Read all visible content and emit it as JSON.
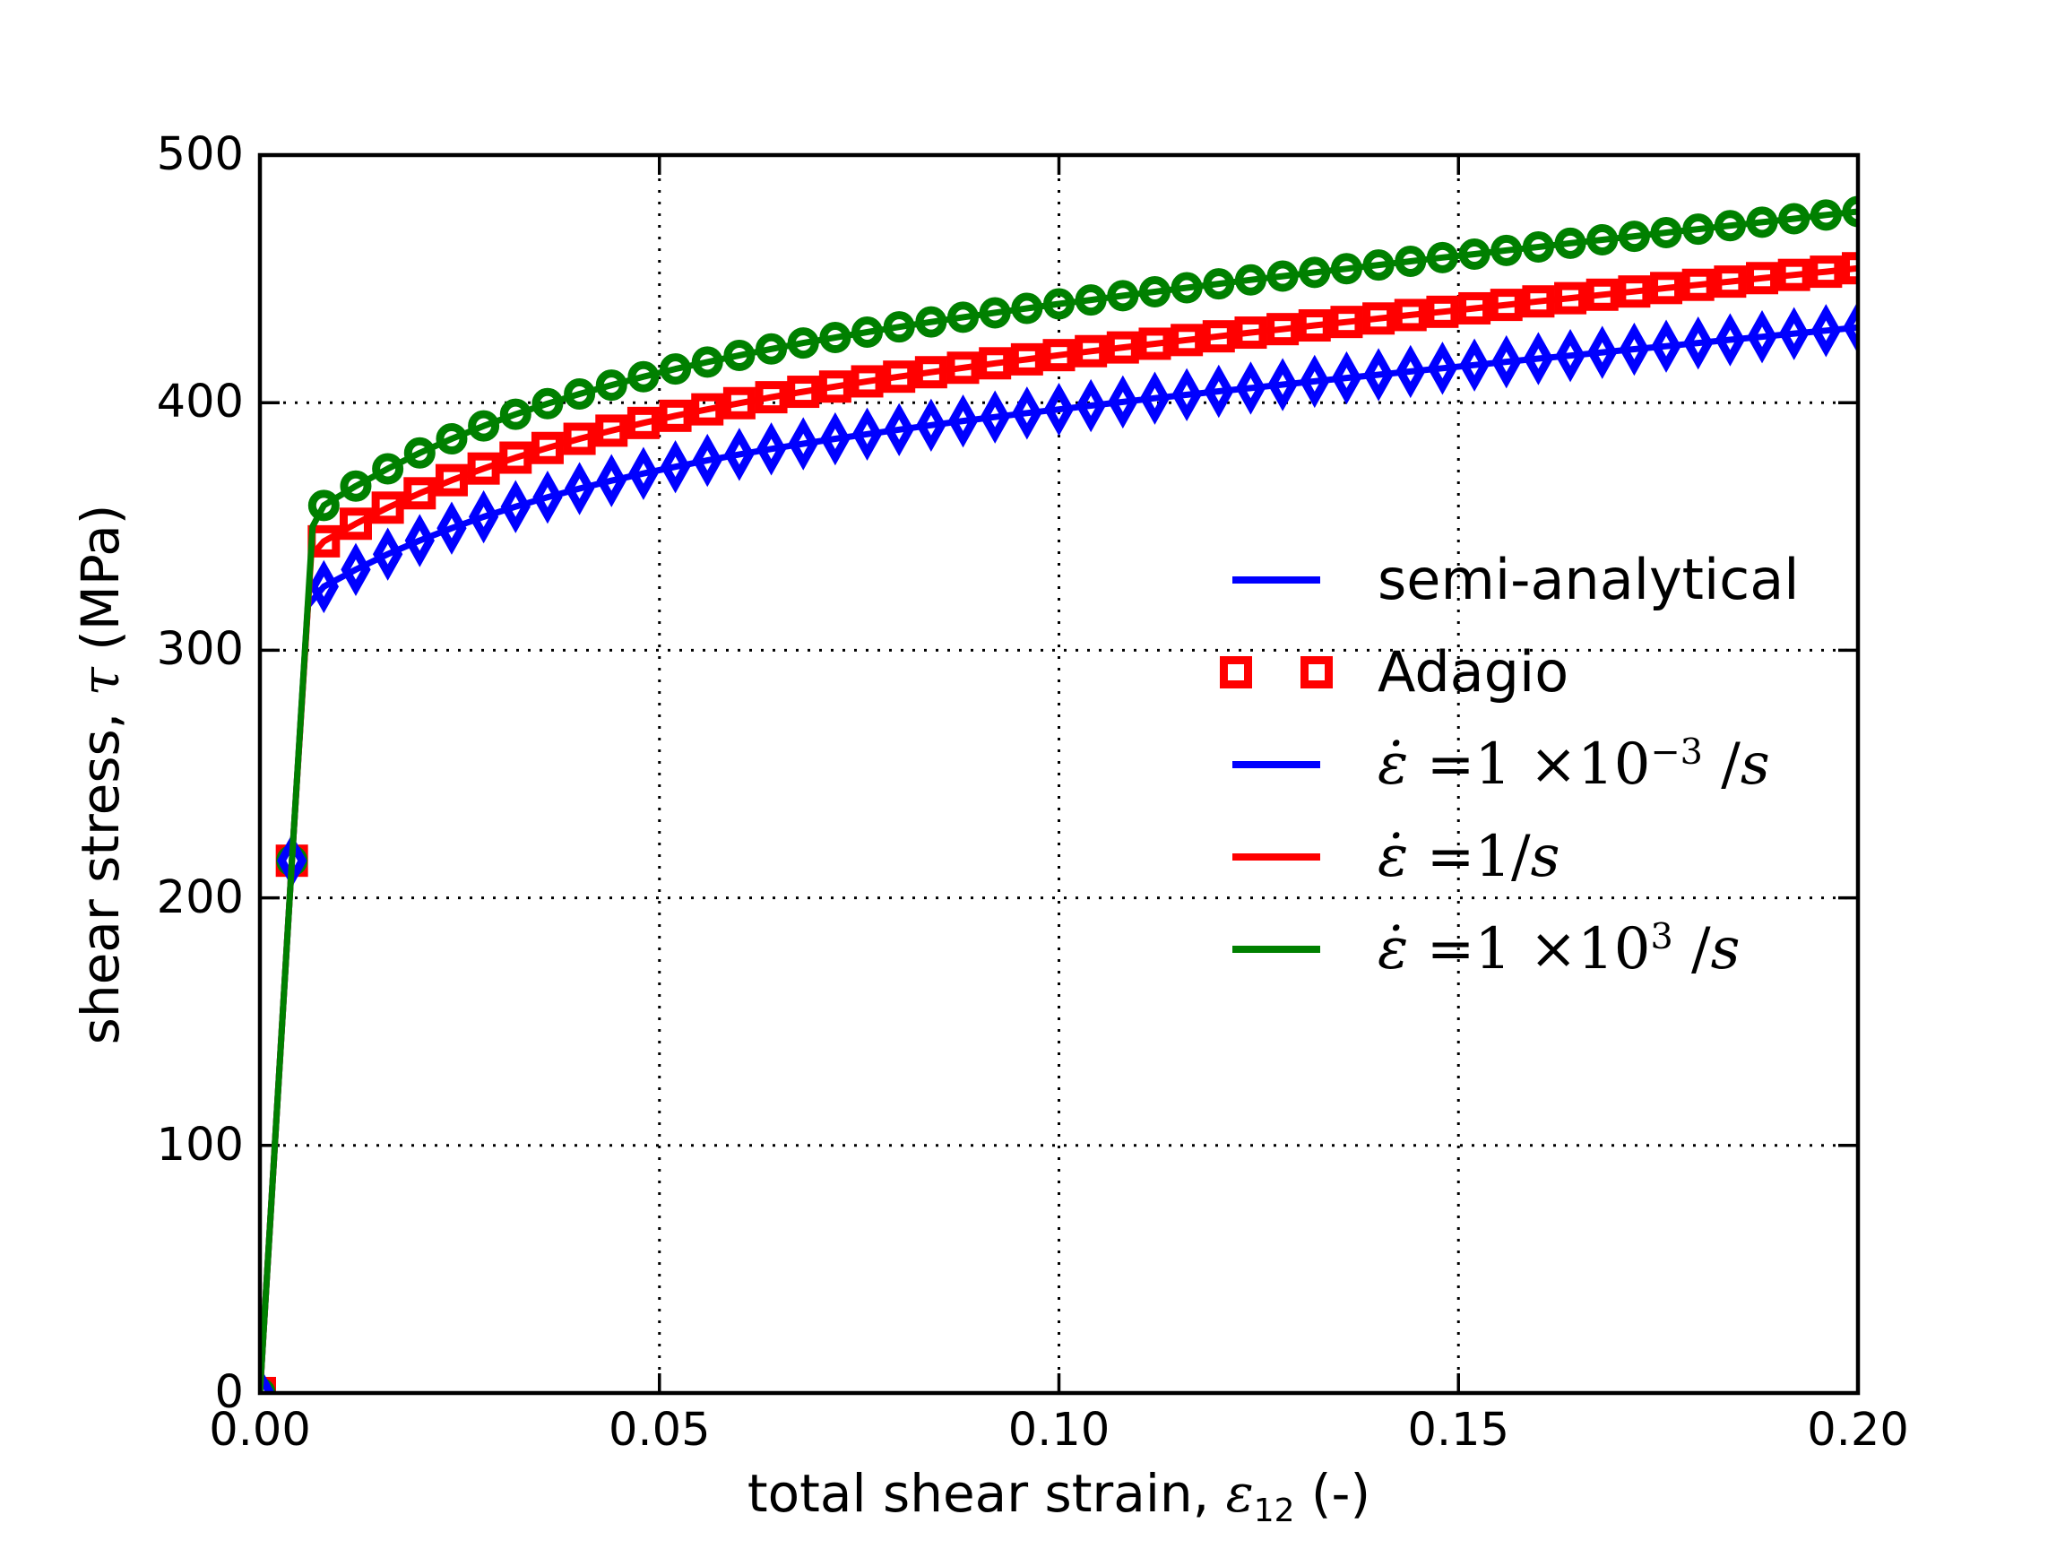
{
  "figure": {
    "background": "#ffffff"
  },
  "colors": {
    "blue": "#0000ff",
    "red": "#ff0000",
    "green": "#008000",
    "axis": "#000000",
    "grid": "#000000"
  },
  "axes": {
    "xlim": [
      0,
      0.2
    ],
    "ylim": [
      0,
      500
    ],
    "x_ticks": {
      "values": [
        0,
        0.05,
        0.1,
        0.15,
        0.2
      ],
      "labels": [
        "0.00",
        "0.05",
        "0.10",
        "0.15",
        "0.20"
      ]
    },
    "y_ticks": {
      "values": [
        0,
        100,
        200,
        300,
        400,
        500
      ],
      "labels": [
        "0",
        "100",
        "200",
        "300",
        "400",
        "500"
      ]
    },
    "x_gridlines": [
      0.05,
      0.1,
      0.15
    ],
    "y_gridlines": [
      100,
      200,
      300,
      400
    ],
    "x_label_parts": [
      {
        "t": "total shear strain, "
      },
      {
        "t": "ε",
        "i": 1
      },
      {
        "t": "12",
        "sub": 1
      },
      {
        "t": " (-)"
      }
    ],
    "y_label_parts": [
      {
        "t": "shear stress, "
      },
      {
        "t": "τ",
        "i": 1
      },
      {
        "t": " (MPa)"
      }
    ]
  },
  "legend": {
    "entries": [
      {
        "sample": "line",
        "color": "#0000ff",
        "math": false,
        "label_parts": [
          {
            "t": "semi-analytical"
          }
        ]
      },
      {
        "sample": "markers",
        "marker": "open-square",
        "color": "#ff0000",
        "math": false,
        "label_parts": [
          {
            "t": "Adagio"
          }
        ]
      },
      {
        "sample": "line",
        "color": "#0000ff",
        "math": true,
        "label_parts": [
          {
            "t": "ε̇",
            "i": 1
          },
          {
            "t": " ="
          },
          {
            "t": "1 ×10"
          },
          {
            "t": "−3",
            "sup": 1
          },
          {
            "t": " /"
          },
          {
            "t": "s",
            "i": 1
          }
        ]
      },
      {
        "sample": "line",
        "color": "#ff0000",
        "math": true,
        "label_parts": [
          {
            "t": "ε̇",
            "i": 1
          },
          {
            "t": " ="
          },
          {
            "t": "1/"
          },
          {
            "t": "s",
            "i": 1
          }
        ]
      },
      {
        "sample": "line",
        "color": "#008000",
        "math": true,
        "label_parts": [
          {
            "t": "ε̇",
            "i": 1
          },
          {
            "t": " ="
          },
          {
            "t": "1 ×10"
          },
          {
            "t": "3",
            "sup": 1
          },
          {
            "t": " /"
          },
          {
            "t": "s",
            "i": 1
          }
        ]
      }
    ]
  },
  "chart_data": {
    "type": "line",
    "title": "",
    "xlabel": "total shear strain, ε12 (-)",
    "ylabel": "shear stress, τ (MPa)",
    "xlim": [
      0,
      0.2
    ],
    "ylim": [
      0,
      500
    ],
    "grid": true,
    "grid_style": "dotted",
    "legend_position": "center right",
    "x": [
      0,
      0.004,
      0.008,
      0.012,
      0.016,
      0.02,
      0.024,
      0.028,
      0.032,
      0.036,
      0.04,
      0.044,
      0.048,
      0.052,
      0.056,
      0.06,
      0.064,
      0.068,
      0.072,
      0.076,
      0.08,
      0.084,
      0.088,
      0.092,
      0.096,
      0.1,
      0.104,
      0.108,
      0.112,
      0.116,
      0.12,
      0.124,
      0.128,
      0.132,
      0.136,
      0.14,
      0.144,
      0.148,
      0.152,
      0.156,
      0.16,
      0.164,
      0.168,
      0.172,
      0.176,
      0.18,
      0.184,
      0.188,
      0.192,
      0.196,
      0.2
    ],
    "series": [
      {
        "name": "strain rate 1e-3 /s (semi-analytical line + Adagio markers)",
        "color": "#0000ff",
        "marker": "thin-diamond",
        "knee": [
          0.006,
          318
        ],
        "values": [
          0,
          215,
          325.7,
          332.6,
          338.8,
          344.3,
          349.3,
          353.9,
          358,
          361.8,
          365.3,
          368.5,
          371.4,
          374.1,
          376.7,
          379.1,
          381.3,
          383.4,
          385.4,
          387.3,
          389.1,
          390.9,
          392.6,
          394.2,
          395.8,
          397.3,
          398.8,
          400.3,
          401.8,
          403.2,
          404.6,
          405.9,
          407.3,
          408.6,
          410,
          411.3,
          412.6,
          413.9,
          415.2,
          416.5,
          417.8,
          419,
          420.3,
          421.6,
          422.8,
          424.1,
          425.4,
          426.6,
          427.9,
          429.1,
          430.4
        ]
      },
      {
        "name": "strain rate 1 /s (semi-analytical line + Adagio markers)",
        "color": "#ff0000",
        "marker": "open-square",
        "knee": [
          0.0064,
          338
        ],
        "values": [
          0,
          215,
          344,
          351.1,
          357.6,
          363.4,
          368.7,
          373.4,
          377.8,
          381.7,
          385.4,
          388.7,
          391.8,
          394.7,
          397.3,
          399.8,
          402.2,
          404.4,
          406.5,
          408.6,
          410.5,
          412.3,
          414.1,
          415.9,
          417.5,
          419.2,
          420.8,
          422.3,
          423.8,
          425.3,
          426.8,
          428.3,
          429.7,
          431.2,
          432.6,
          434,
          435.4,
          436.7,
          438.1,
          439.5,
          440.9,
          442.2,
          443.6,
          444.9,
          446.3,
          447.6,
          448.9,
          450.3,
          451.6,
          452.9,
          454.3
        ]
      },
      {
        "name": "strain rate 1e3 /s (semi-analytical line + Adagio markers)",
        "color": "#008000",
        "marker": "open-circle",
        "knee": [
          0.0066,
          350
        ],
        "values": [
          0,
          215,
          358.5,
          366.3,
          373.3,
          379.7,
          385.4,
          390.6,
          395.3,
          399.6,
          403.5,
          407.1,
          410.5,
          413.6,
          416.4,
          419.1,
          421.7,
          424.1,
          426.3,
          428.5,
          430.6,
          432.6,
          434.5,
          436.3,
          438.1,
          439.9,
          441.5,
          443.2,
          444.8,
          446.4,
          448,
          449.6,
          451.1,
          452.6,
          454.1,
          455.6,
          457.1,
          458.6,
          460,
          461.5,
          462.9,
          464.4,
          465.8,
          467.2,
          468.7,
          470.1,
          471.5,
          472.9,
          474.3,
          475.8,
          477.2
        ]
      }
    ]
  }
}
